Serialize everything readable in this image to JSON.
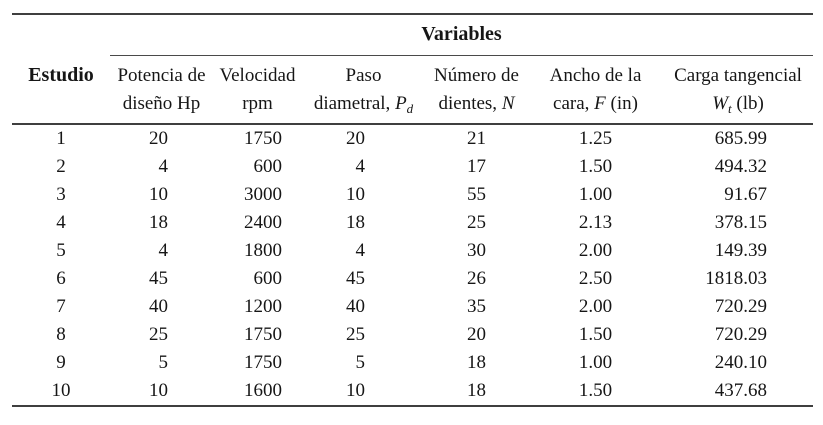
{
  "table": {
    "group_header": "Variables",
    "corner_header": "Estudio",
    "columns": [
      {
        "line1": "Potencia de",
        "l2pre": "diseño Hp"
      },
      {
        "line1": "Velocidad",
        "l2pre": "rpm"
      },
      {
        "line1": "Paso",
        "l2pre": "diametral, ",
        "l2var": "P",
        "l2sub": "d"
      },
      {
        "line1": "Número de",
        "l2pre": "dientes, ",
        "l2var": "N"
      },
      {
        "line1": "Ancho de la",
        "l2pre": "cara, ",
        "l2var": "F",
        "l2suf": " (in)"
      },
      {
        "line1": "Carga tangencial",
        "l2var": "W",
        "l2sub": "t",
        "l2suf": " (lb)"
      }
    ],
    "rows": [
      [
        "1",
        "20",
        "1750",
        "20",
        "21",
        "1.25",
        "685.99"
      ],
      [
        "2",
        "4",
        "600",
        "4",
        "17",
        "1.50",
        "494.32"
      ],
      [
        "3",
        "10",
        "3000",
        "10",
        "55",
        "1.00",
        "91.67"
      ],
      [
        "4",
        "18",
        "2400",
        "18",
        "25",
        "2.13",
        "378.15"
      ],
      [
        "5",
        "4",
        "1800",
        "4",
        "30",
        "2.00",
        "149.39"
      ],
      [
        "6",
        "45",
        "600",
        "45",
        "26",
        "2.50",
        "1818.03"
      ],
      [
        "7",
        "40",
        "1200",
        "40",
        "35",
        "2.00",
        "720.29"
      ],
      [
        "8",
        "25",
        "1750",
        "25",
        "20",
        "1.50",
        "720.29"
      ],
      [
        "9",
        "5",
        "1750",
        "5",
        "18",
        "1.00",
        "240.10"
      ],
      [
        "10",
        "10",
        "1600",
        "10",
        "18",
        "1.50",
        "437.68"
      ]
    ]
  },
  "colors": {
    "background": "#ffffff",
    "text": "#161616",
    "rule_heavy": "#3f3f3f",
    "rule_light": "#4a4a4a"
  }
}
